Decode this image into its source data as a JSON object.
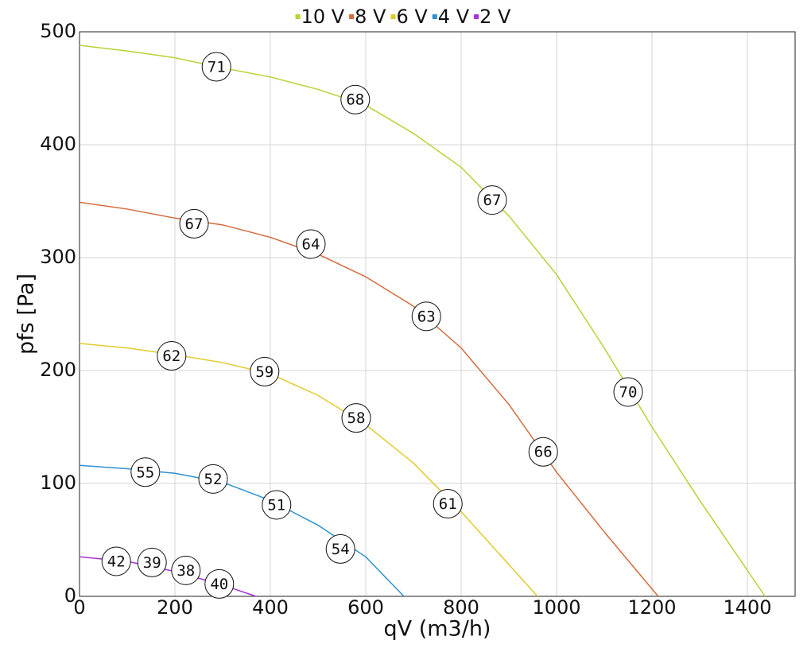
{
  "chart_data": {
    "type": "line",
    "x_label": "qV (m3/h)",
    "y_label": "pfs [Pa]",
    "xlim": [
      0,
      1500
    ],
    "xticks": [
      0,
      200,
      400,
      600,
      800,
      1000,
      1200,
      1400
    ],
    "ylim": [
      0,
      500
    ],
    "yticks": [
      0,
      100,
      200,
      300,
      400,
      500
    ],
    "grid": true,
    "legend": "top",
    "series": [
      {
        "name": "10 V",
        "color": "#b5d334",
        "x": [
          0,
          100,
          200,
          300,
          400,
          500,
          600,
          700,
          800,
          900,
          1000,
          1100,
          1200,
          1300,
          1437
        ],
        "values": [
          488,
          483,
          477,
          468,
          460,
          449,
          435,
          410,
          380,
          337,
          285,
          220,
          150,
          85,
          0
        ],
        "markers": [
          {
            "x": 287,
            "y": 469,
            "value": 71
          },
          {
            "x": 578,
            "y": 440,
            "value": 68
          },
          {
            "x": 865,
            "y": 351,
            "value": 67
          },
          {
            "x": 1150,
            "y": 181,
            "value": 70
          }
        ]
      },
      {
        "name": "8 V",
        "color": "#d36b3b",
        "x": [
          0,
          100,
          200,
          300,
          400,
          500,
          600,
          700,
          800,
          900,
          1000,
          1100,
          1213
        ],
        "values": [
          349,
          343,
          335,
          329,
          318,
          303,
          283,
          257,
          220,
          170,
          110,
          57,
          0
        ],
        "markers": [
          {
            "x": 240,
            "y": 330,
            "value": 67
          },
          {
            "x": 485,
            "y": 312,
            "value": 64
          },
          {
            "x": 727,
            "y": 248,
            "value": 63
          },
          {
            "x": 972,
            "y": 128,
            "value": 66
          }
        ]
      },
      {
        "name": "6 V",
        "color": "#e0cc2c",
        "x": [
          0,
          100,
          200,
          300,
          400,
          500,
          600,
          700,
          800,
          960
        ],
        "values": [
          224,
          220,
          214,
          207,
          197,
          178,
          152,
          118,
          75,
          0
        ],
        "markers": [
          {
            "x": 193,
            "y": 213,
            "value": 62
          },
          {
            "x": 388,
            "y": 199,
            "value": 59
          },
          {
            "x": 580,
            "y": 158,
            "value": 58
          },
          {
            "x": 772,
            "y": 82,
            "value": 61
          }
        ]
      },
      {
        "name": "4 V",
        "color": "#2c91d0",
        "x": [
          0,
          100,
          200,
          300,
          400,
          500,
          600,
          680
        ],
        "values": [
          116,
          113,
          109,
          101,
          85,
          63,
          35,
          0
        ],
        "markers": [
          {
            "x": 138,
            "y": 110,
            "value": 55
          },
          {
            "x": 280,
            "y": 104,
            "value": 52
          },
          {
            "x": 413,
            "y": 81,
            "value": 51
          },
          {
            "x": 547,
            "y": 42,
            "value": 54
          }
        ]
      },
      {
        "name": "2 V",
        "color": "#a534d3",
        "x": [
          0,
          100,
          200,
          300,
          370
        ],
        "values": [
          35,
          31,
          22,
          10,
          0
        ],
        "markers": [
          {
            "x": 77,
            "y": 31,
            "value": 42
          },
          {
            "x": 152,
            "y": 30,
            "value": 39
          },
          {
            "x": 223,
            "y": 23,
            "value": 38
          },
          {
            "x": 293,
            "y": 11,
            "value": 40
          }
        ]
      }
    ]
  }
}
